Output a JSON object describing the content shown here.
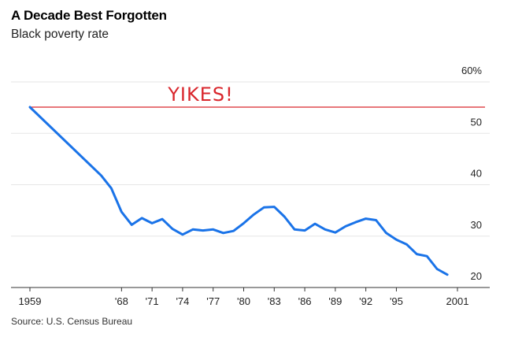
{
  "header": {
    "title": "A Decade Best Forgotten",
    "subtitle": "Black poverty rate"
  },
  "source": "Source: U.S. Census Bureau",
  "colors": {
    "line": "#1a73e8",
    "reference": "#d9262c",
    "grid": "#e6e6e6",
    "axis": "#333333"
  },
  "chart_data": {
    "type": "line",
    "title": "A Decade Best Forgotten",
    "subtitle": "Black poverty rate",
    "xlabel": "",
    "ylabel": "",
    "xlim": [
      1959,
      2001
    ],
    "ylim": [
      20,
      60
    ],
    "y_ticks": [
      20,
      30,
      40,
      50,
      60
    ],
    "y_tick_labels": [
      "20",
      "30",
      "40",
      "50",
      "60%"
    ],
    "x_ticks": [
      1959,
      1968,
      1971,
      1974,
      1977,
      1980,
      1983,
      1986,
      1989,
      1992,
      1995,
      2001
    ],
    "x_tick_labels": [
      "1959",
      "'68",
      "'71",
      "'74",
      "'77",
      "'80",
      "'83",
      "'86",
      "'89",
      "'92",
      "'95",
      "2001"
    ],
    "grid": true,
    "y_axis_side": "right",
    "series": [
      {
        "x": [
          1959,
          1966,
          1967,
          1968,
          1969,
          1970,
          1971,
          1972,
          1973,
          1974,
          1975,
          1976,
          1977,
          1978,
          1979,
          1980,
          1981,
          1982,
          1983,
          1984,
          1985,
          1986,
          1987,
          1988,
          1989,
          1990,
          1991,
          1992,
          1993,
          1994,
          1995,
          1996,
          1997,
          1998,
          1999,
          2000
        ],
        "values": [
          55.1,
          41.8,
          39.3,
          34.7,
          32.2,
          33.5,
          32.5,
          33.3,
          31.4,
          30.3,
          31.3,
          31.1,
          31.3,
          30.6,
          31.0,
          32.5,
          34.2,
          35.6,
          35.7,
          33.8,
          31.3,
          31.1,
          32.4,
          31.3,
          30.7,
          31.9,
          32.7,
          33.4,
          33.1,
          30.6,
          29.3,
          28.4,
          26.5,
          26.1,
          23.6,
          22.5
        ]
      }
    ],
    "annotations": [
      {
        "type": "hline",
        "y": 55.1,
        "x_start": 1959,
        "label": "YIKES!"
      }
    ]
  }
}
